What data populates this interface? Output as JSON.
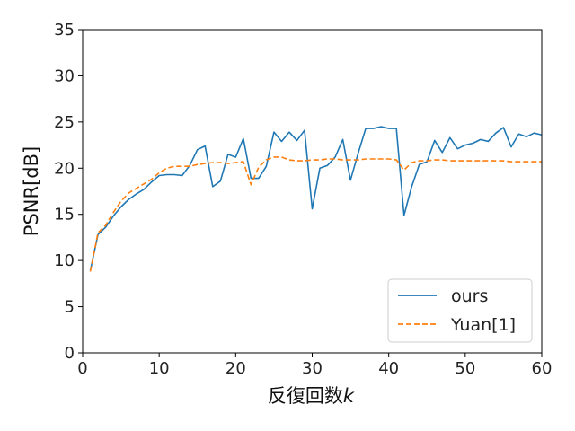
{
  "chart_data": {
    "type": "line",
    "xlabel": "反復回数",
    "xlabel_var": "k",
    "ylabel": "PSNR[dB]",
    "xlim": [
      0,
      60
    ],
    "ylim": [
      0,
      35
    ],
    "xticks": [
      0,
      10,
      20,
      30,
      40,
      50,
      60
    ],
    "yticks": [
      0,
      5,
      10,
      15,
      20,
      25,
      30,
      35
    ],
    "grid": false,
    "legend_position": "bottom-right",
    "x": [
      1,
      2,
      3,
      4,
      5,
      6,
      7,
      8,
      9,
      10,
      11,
      12,
      13,
      14,
      15,
      16,
      17,
      18,
      19,
      20,
      21,
      22,
      23,
      24,
      25,
      26,
      27,
      28,
      29,
      30,
      31,
      32,
      33,
      34,
      35,
      36,
      37,
      38,
      39,
      40,
      41,
      42,
      43,
      44,
      45,
      46,
      47,
      48,
      49,
      50,
      51,
      52,
      53,
      54,
      55,
      56,
      57,
      58,
      59,
      60
    ],
    "series": [
      {
        "name": "ours",
        "color": "#1f77b4",
        "style": "solid",
        "values": [
          8.9,
          12.8,
          13.6,
          14.8,
          15.8,
          16.6,
          17.2,
          17.7,
          18.5,
          19.2,
          19.3,
          19.3,
          19.2,
          20.3,
          22.0,
          22.4,
          18.0,
          18.6,
          21.5,
          21.2,
          23.2,
          18.9,
          18.9,
          20.2,
          23.9,
          22.9,
          23.9,
          23.0,
          24.1,
          15.6,
          20.0,
          20.3,
          21.2,
          23.1,
          18.7,
          21.6,
          24.3,
          24.3,
          24.5,
          24.3,
          24.3,
          14.9,
          18.0,
          20.4,
          20.7,
          23.0,
          21.7,
          23.3,
          22.1,
          22.5,
          22.7,
          23.1,
          22.9,
          23.8,
          24.4,
          22.3,
          23.7,
          23.4,
          23.8,
          23.6
        ]
      },
      {
        "name": "Yuan[1]",
        "color": "#ff7f0e",
        "style": "dashed",
        "values": [
          8.8,
          13.0,
          13.8,
          15.2,
          16.4,
          17.3,
          17.8,
          18.3,
          18.8,
          19.5,
          20.0,
          20.2,
          20.2,
          20.2,
          20.4,
          20.5,
          20.6,
          20.6,
          20.5,
          20.6,
          20.7,
          18.2,
          20.1,
          20.9,
          21.2,
          21.2,
          20.9,
          20.8,
          20.8,
          20.9,
          20.9,
          21.0,
          21.0,
          20.9,
          20.9,
          20.9,
          21.0,
          21.0,
          21.0,
          21.0,
          20.9,
          19.8,
          20.6,
          20.8,
          20.8,
          20.9,
          20.9,
          20.8,
          20.8,
          20.8,
          20.8,
          20.8,
          20.8,
          20.8,
          20.8,
          20.7,
          20.7,
          20.7,
          20.7,
          20.7
        ]
      }
    ]
  }
}
